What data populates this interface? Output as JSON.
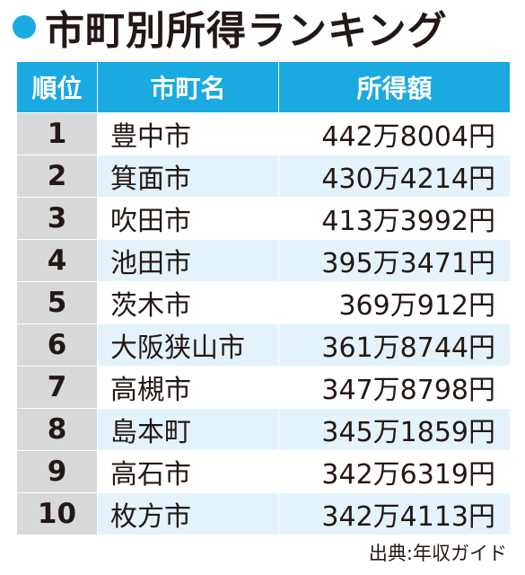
{
  "title": "市町別所得ランキング",
  "accent_color": "#1ba9e1",
  "header_text_color": "#ffffff",
  "rank_cell_color": "#d7d8d9",
  "stripe_color": "#e4f3fb",
  "columns": {
    "rank": "順位",
    "city": "市町名",
    "income": "所得額"
  },
  "rows": [
    {
      "rank": "1",
      "city": "豊中市",
      "income": "442万8004円"
    },
    {
      "rank": "2",
      "city": "箕面市",
      "income": "430万4214円"
    },
    {
      "rank": "3",
      "city": "吹田市",
      "income": "413万3992円"
    },
    {
      "rank": "4",
      "city": "池田市",
      "income": "395万3471円"
    },
    {
      "rank": "5",
      "city": "茨木市",
      "income": "369万912円"
    },
    {
      "rank": "6",
      "city": "大阪狭山市",
      "income": "361万8744円"
    },
    {
      "rank": "7",
      "city": "高槻市",
      "income": "347万8798円"
    },
    {
      "rank": "8",
      "city": "島本町",
      "income": "345万1859円"
    },
    {
      "rank": "9",
      "city": "高石市",
      "income": "342万6319円"
    },
    {
      "rank": "10",
      "city": "枚方市",
      "income": "342万4113円"
    }
  ],
  "source": "出典:年収ガイド"
}
